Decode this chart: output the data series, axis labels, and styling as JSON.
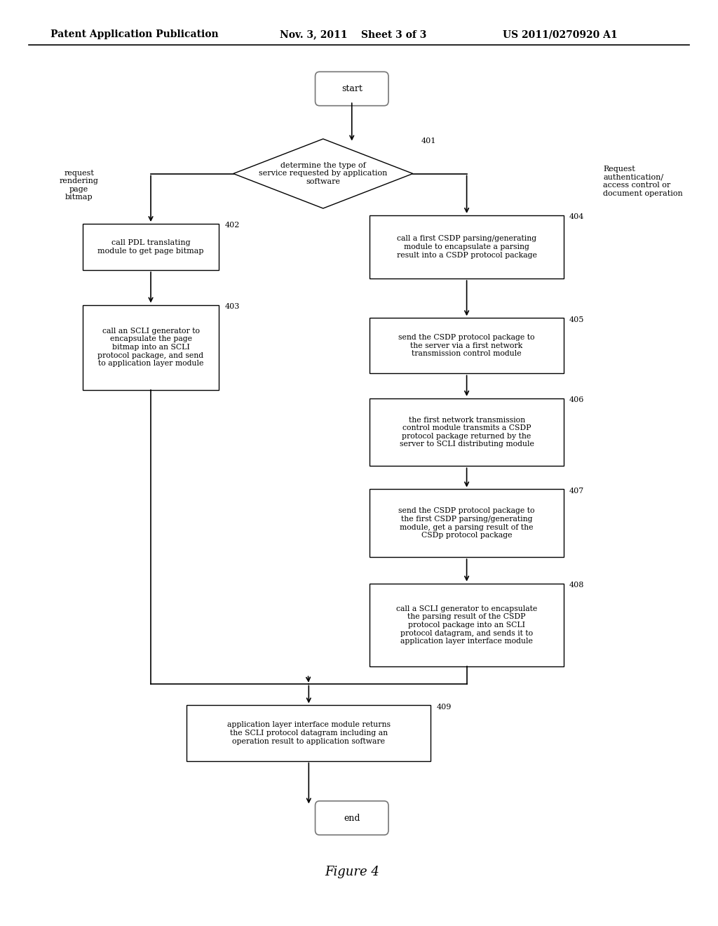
{
  "title": "Figure 4",
  "header_left": "Patent Application Publication",
  "header_mid": "Nov. 3, 2011    Sheet 3 of 3",
  "header_right": "US 2011/0270920 A1",
  "bg_color": "#ffffff",
  "start_text": "start",
  "end_text": "end",
  "diamond_text": "determine the type of\nservice requested by application\nsoftware",
  "diamond_label": "401",
  "left_branch_label": "request\nrendering\npage\nbitmap",
  "right_branch_label": "Request\nauthentication/\naccess control or\ndocument operation",
  "box_402_text": "call PDL translating\nmodule to get page bitmap",
  "box_402_label": "402",
  "box_403_text": "call an SCLI generator to\nencapsulate the page\nbitmap into an SCLI\nprotocol package, and send\nto application layer module",
  "box_403_label": "403",
  "box_404_text": "call a first CSDP parsing/generating\nmodule to encapsulate a parsing\nresult into a CSDP protocol package",
  "box_404_label": "404",
  "box_405_text": "send the CSDP protocol package to\nthe server via a first network\ntransmission control module",
  "box_405_label": "405",
  "box_406_text": "the first network transmission\ncontrol module transmits a CSDP\nprotocol package returned by the\nserver to SCLI distributing module",
  "box_406_label": "406",
  "box_407_text": "send the CSDP protocol package to\nthe first CSDP parsing/generating\nmodule, get a parsing result of the\nCSDp protocol package",
  "box_407_label": "407",
  "box_408_text": "call a SCLI generator to encapsulate\nthe parsing result of the CSDP\nprotocol package into an SCLI\nprotocol datagram, and sends it to\napplication layer interface module",
  "box_408_label": "408",
  "box_409_text": "application layer interface module returns\nthe SCLI protocol datagram including an\noperation result to application software",
  "box_409_label": "409"
}
